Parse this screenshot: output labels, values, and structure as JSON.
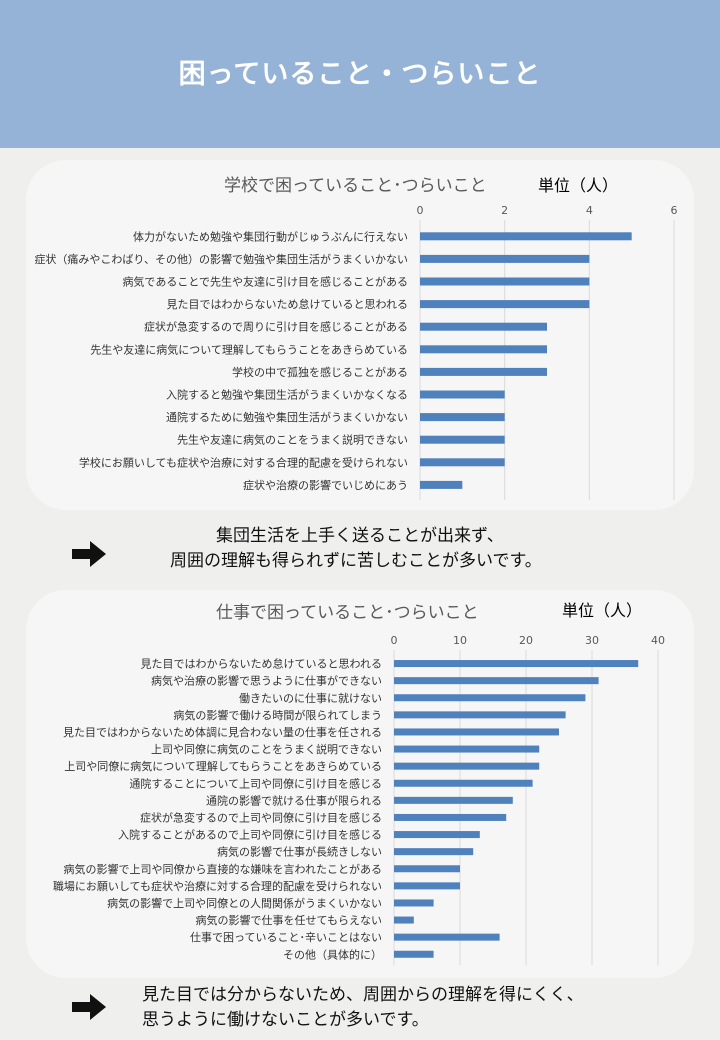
{
  "header": {
    "title": "困っていること・つらいこと"
  },
  "school": {
    "unit": "単位（人）",
    "summary": [
      "集団生活を上手く送ることが出来ず、",
      "周囲の理解も得られずに苦しむことが多いです。"
    ]
  },
  "work": {
    "unit": "単位（人）",
    "summary": [
      "見た目では分からないため、周囲からの理解を得にくく、",
      "思うように働けないことが多いです。"
    ]
  },
  "colors": {
    "bar": "#4f81bd",
    "header": "#95b3d7"
  },
  "chart_data": [
    {
      "type": "bar",
      "orientation": "horizontal",
      "title": "学校で困っていること･つらいこと",
      "xlim": [
        0,
        6
      ],
      "xticks": [
        0,
        2,
        4,
        6
      ],
      "categories": [
        "体力がないため勉強や集団行動がじゅうぶんに行えない",
        "症状（痛みやこわばり、その他）の影響で勉強や集団生活がうまくいかない",
        "病気であることで先生や友達に引け目を感じることがある",
        "見た目ではわからないため怠けていると思われる",
        "症状が急変するので周りに引け目を感じることがある",
        "先生や友達に病気について理解してもらうことをあきらめている",
        "学校の中で孤独を感じることがある",
        "入院すると勉強や集団生活がうまくいかなくなる",
        "通院するために勉強や集団生活がうまくいかない",
        "先生や友達に病気のことをうまく説明できない",
        "学校にお願いしても症状や治療に対する合理的配慮を受けられない",
        "症状や治療の影響でいじめにあう"
      ],
      "values": [
        5,
        4,
        4,
        4,
        3,
        3,
        3,
        2,
        2,
        2,
        2,
        1
      ]
    },
    {
      "type": "bar",
      "orientation": "horizontal",
      "title": "仕事で困っていること･つらいこと",
      "xlim": [
        0,
        40
      ],
      "xticks": [
        0,
        10,
        20,
        30,
        40
      ],
      "categories": [
        "見た目ではわからないため怠けていると思われる",
        "病気や治療の影響で思うように仕事ができない",
        "働きたいのに仕事に就けない",
        "病気の影響で働ける時間が限られてしまう",
        "見た目ではわからないため体調に見合わない量の仕事を任される",
        "上司や同僚に病気のことをうまく説明できない",
        "上司や同僚に病気について理解してもらうことをあきらめている",
        "通院することについて上司や同僚に引け目を感じる",
        "通院の影響で就ける仕事が限られる",
        "症状が急変するので上司や同僚に引け目を感じる",
        "入院することがあるので上司や同僚に引け目を感じる",
        "病気の影響で仕事が長続きしない",
        "病気の影響で上司や同僚から直接的な嫌味を言われたことがある",
        "職場にお願いしても症状や治療に対する合理的配慮を受けられない",
        "病気の影響で上司や同僚との人間関係がうまくいかない",
        "病気の影響で仕事を任せてもらえない",
        "仕事で困っていること･辛いことはない",
        "その他（具体的に）"
      ],
      "values": [
        37,
        31,
        29,
        26,
        25,
        22,
        22,
        21,
        18,
        17,
        13,
        12,
        10,
        10,
        6,
        3,
        16,
        6
      ]
    }
  ]
}
